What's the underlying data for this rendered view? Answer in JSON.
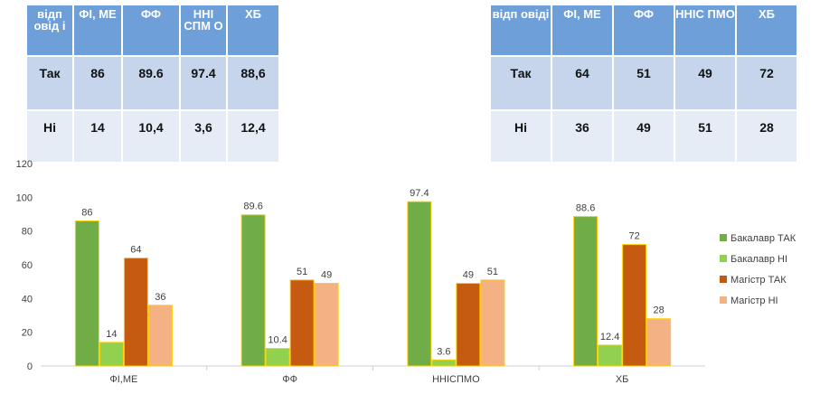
{
  "table_left": {
    "headers": [
      "відп овід і",
      "ФІ, МЕ",
      "ФФ",
      "ННІ СПМ О",
      "ХБ"
    ],
    "rows": [
      [
        "Так",
        "86",
        "89.6",
        "97.4",
        "88,6"
      ],
      [
        "Ні",
        "14",
        "10,4",
        "3,6",
        "12,4"
      ]
    ]
  },
  "table_right": {
    "headers": [
      "відп овіді",
      "ФІ, МЕ",
      "ФФ",
      "ННІС ПМО",
      "ХБ"
    ],
    "rows": [
      [
        "Так",
        "64",
        "51",
        "49",
        "72"
      ],
      [
        "Ні",
        "36",
        "49",
        "51",
        "28"
      ]
    ]
  },
  "chart_data": {
    "type": "bar",
    "categories": [
      "ФІ,МЕ",
      "ФФ",
      "ННІСПМО",
      "ХБ"
    ],
    "series": [
      {
        "name": "Бакалавр ТАК",
        "values": [
          86,
          89.6,
          97.4,
          88.6
        ],
        "labels": [
          "86",
          "89.6",
          "97.4",
          "88.6"
        ],
        "color": "#70ad47"
      },
      {
        "name": "Бакалавр НІ",
        "values": [
          14,
          10.4,
          3.6,
          12.4
        ],
        "labels": [
          "14",
          "10.4",
          "3.6",
          "12.4"
        ],
        "color": "#92d050"
      },
      {
        "name": "Магістр ТАК",
        "values": [
          64,
          51,
          49,
          72
        ],
        "labels": [
          "64",
          "51",
          "49",
          "72"
        ],
        "color": "#c55a11"
      },
      {
        "name": "Магістр НІ",
        "values": [
          36,
          49,
          51,
          28
        ],
        "labels": [
          "36",
          "49",
          "51",
          "28"
        ],
        "color": "#f4b183"
      }
    ],
    "y_ticks": [
      "0",
      "20",
      "40",
      "60",
      "80",
      "100",
      "120"
    ],
    "ylim": [
      0,
      120
    ],
    "grid": false,
    "legend_position": "right"
  },
  "colors": {
    "table_header": "#6f9fd8",
    "table_row_1": "#c6d5ec",
    "table_row_2": "#e6ecf6",
    "bar_outline": "#ffd000"
  }
}
